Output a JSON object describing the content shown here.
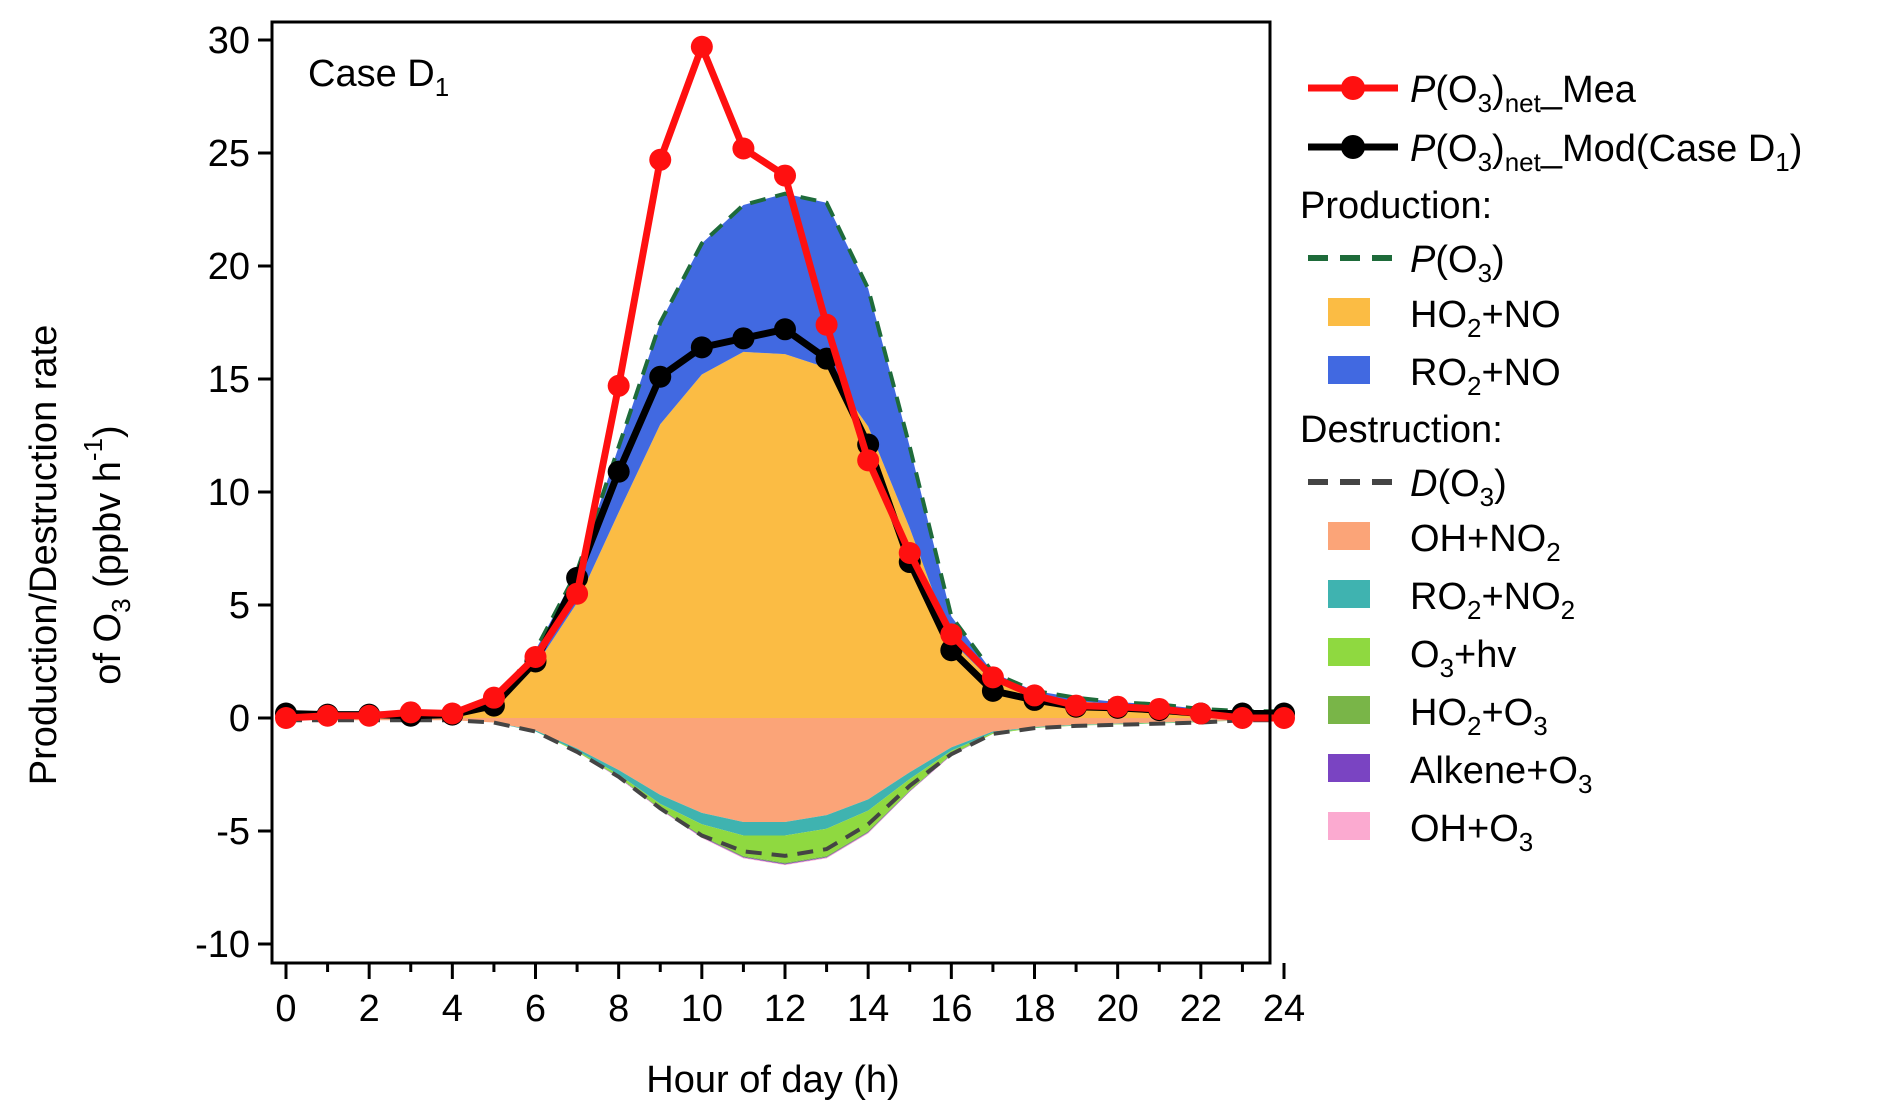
{
  "chart_data": {
    "type": "area",
    "annotation": {
      "text": "Case D",
      "sub": "1"
    },
    "xlabel": "Hour of day (h)",
    "ylabel_line1": "Production/Destruction rate",
    "ylabel_line2": {
      "pre": "of O",
      "sub": "3",
      "mid": " (ppbv h",
      "sup": "-1",
      "post": ")"
    },
    "xlim": [
      0,
      24
    ],
    "ylim": [
      -10,
      30
    ],
    "xticks": [
      0,
      2,
      4,
      6,
      8,
      10,
      12,
      14,
      16,
      18,
      20,
      22,
      24
    ],
    "yticks": [
      -10,
      -5,
      0,
      5,
      10,
      15,
      20,
      25,
      30
    ],
    "x": [
      0,
      1,
      2,
      3,
      4,
      5,
      6,
      7,
      8,
      9,
      10,
      11,
      12,
      13,
      14,
      15,
      16,
      17,
      18,
      19,
      20,
      21,
      22,
      23,
      24
    ],
    "production": {
      "label": "Production:",
      "total": {
        "name": "P(O3)",
        "color": "#1e6b3a",
        "values": [
          0.2,
          0.2,
          0.2,
          0.2,
          0.3,
          0.7,
          3.0,
          6.5,
          12.0,
          17.5,
          21.0,
          22.7,
          23.2,
          22.8,
          19.0,
          12.0,
          4.5,
          2.0,
          1.2,
          0.9,
          0.7,
          0.6,
          0.4,
          0.3,
          0.3
        ]
      },
      "components": [
        {
          "name": "HO2+NO",
          "color": "#fbbc44",
          "values": [
            0.15,
            0.15,
            0.15,
            0.15,
            0.25,
            0.55,
            2.3,
            5.1,
            9.1,
            13.0,
            15.2,
            16.2,
            16.1,
            15.5,
            12.9,
            8.4,
            3.4,
            1.6,
            1.0,
            0.75,
            0.6,
            0.5,
            0.35,
            0.25,
            0.25
          ]
        },
        {
          "name": "RO2+NO",
          "color": "#4169e1",
          "values": [
            0.05,
            0.05,
            0.05,
            0.05,
            0.05,
            0.15,
            0.7,
            1.4,
            2.9,
            4.5,
            5.8,
            6.5,
            7.1,
            7.3,
            6.1,
            3.6,
            1.1,
            0.4,
            0.2,
            0.15,
            0.1,
            0.1,
            0.05,
            0.05,
            0.05
          ]
        }
      ]
    },
    "destruction": {
      "label": "Destruction:",
      "total": {
        "name": "D(O3)",
        "color": "#444444",
        "values": [
          -0.1,
          -0.1,
          -0.1,
          -0.1,
          -0.1,
          -0.2,
          -0.6,
          -1.5,
          -2.6,
          -4.0,
          -5.2,
          -5.9,
          -6.1,
          -5.8,
          -4.7,
          -3.0,
          -1.6,
          -0.7,
          -0.45,
          -0.35,
          -0.3,
          -0.25,
          -0.2,
          -0.1,
          -0.1
        ]
      },
      "components": [
        {
          "name": "OH+NO2",
          "color": "#fba478",
          "values": [
            -0.1,
            -0.1,
            -0.1,
            -0.1,
            -0.1,
            -0.2,
            -0.55,
            -1.35,
            -2.3,
            -3.4,
            -4.2,
            -4.6,
            -4.6,
            -4.3,
            -3.6,
            -2.4,
            -1.3,
            -0.6,
            -0.4,
            -0.3,
            -0.25,
            -0.2,
            -0.15,
            -0.1,
            -0.1
          ]
        },
        {
          "name": "RO2+NO2",
          "color": "#3fb3b0",
          "values": [
            0,
            0,
            0,
            0,
            0,
            0,
            -0.05,
            -0.1,
            -0.2,
            -0.4,
            -0.5,
            -0.6,
            -0.6,
            -0.6,
            -0.5,
            -0.3,
            -0.15,
            -0.05,
            -0.03,
            -0.02,
            -0.02,
            -0.02,
            -0.02,
            0,
            0
          ]
        },
        {
          "name": "O3+hv",
          "color": "#8fd940",
          "values": [
            0,
            0,
            0,
            0,
            0,
            0,
            0,
            -0.05,
            -0.1,
            -0.2,
            -0.5,
            -0.9,
            -1.2,
            -1.2,
            -0.9,
            -0.5,
            -0.15,
            -0.05,
            -0.02,
            -0.02,
            -0.02,
            -0.02,
            -0.02,
            0,
            0
          ]
        },
        {
          "name": "HO2+O3",
          "color": "#79b548",
          "values": [
            0,
            0,
            0,
            0,
            0,
            0,
            0,
            0,
            -0.02,
            -0.03,
            -0.05,
            -0.05,
            -0.05,
            -0.05,
            -0.05,
            -0.03,
            -0.02,
            0,
            0,
            0,
            0,
            0,
            0,
            0,
            0
          ]
        },
        {
          "name": "Alkene+O3",
          "color": "#7a44c2",
          "values": [
            0,
            0,
            0,
            0,
            0,
            0,
            0,
            0,
            -0.02,
            -0.02,
            -0.03,
            -0.03,
            -0.03,
            -0.03,
            -0.03,
            -0.02,
            -0.02,
            0,
            0,
            0,
            0,
            0,
            0,
            0,
            0
          ]
        },
        {
          "name": "OH+O3",
          "color": "#fbaad0",
          "values": [
            0,
            0,
            0,
            0,
            0,
            0,
            0,
            0,
            -0.02,
            -0.02,
            -0.03,
            -0.03,
            -0.03,
            -0.03,
            -0.03,
            -0.02,
            -0.02,
            0,
            0,
            0,
            0,
            0,
            0,
            0,
            0
          ]
        }
      ]
    },
    "lines": [
      {
        "name": "P(O3)net_Mea",
        "color": "#ff1010",
        "values": [
          0.0,
          0.1,
          0.1,
          0.25,
          0.2,
          0.9,
          2.7,
          5.5,
          14.7,
          24.7,
          29.7,
          25.2,
          24.0,
          17.4,
          11.4,
          7.3,
          3.7,
          1.8,
          1.0,
          0.55,
          0.5,
          0.4,
          0.2,
          0.0,
          0.0
        ]
      },
      {
        "name": "P(O3)net_Mod(Case D1)",
        "color": "#000000",
        "values": [
          0.2,
          0.15,
          0.15,
          0.1,
          0.15,
          0.55,
          2.5,
          6.2,
          10.9,
          15.1,
          16.4,
          16.8,
          17.2,
          15.9,
          12.1,
          6.9,
          3.0,
          1.2,
          0.8,
          0.5,
          0.45,
          0.35,
          0.2,
          0.2,
          0.2
        ]
      }
    ],
    "legend_placement": "right"
  }
}
